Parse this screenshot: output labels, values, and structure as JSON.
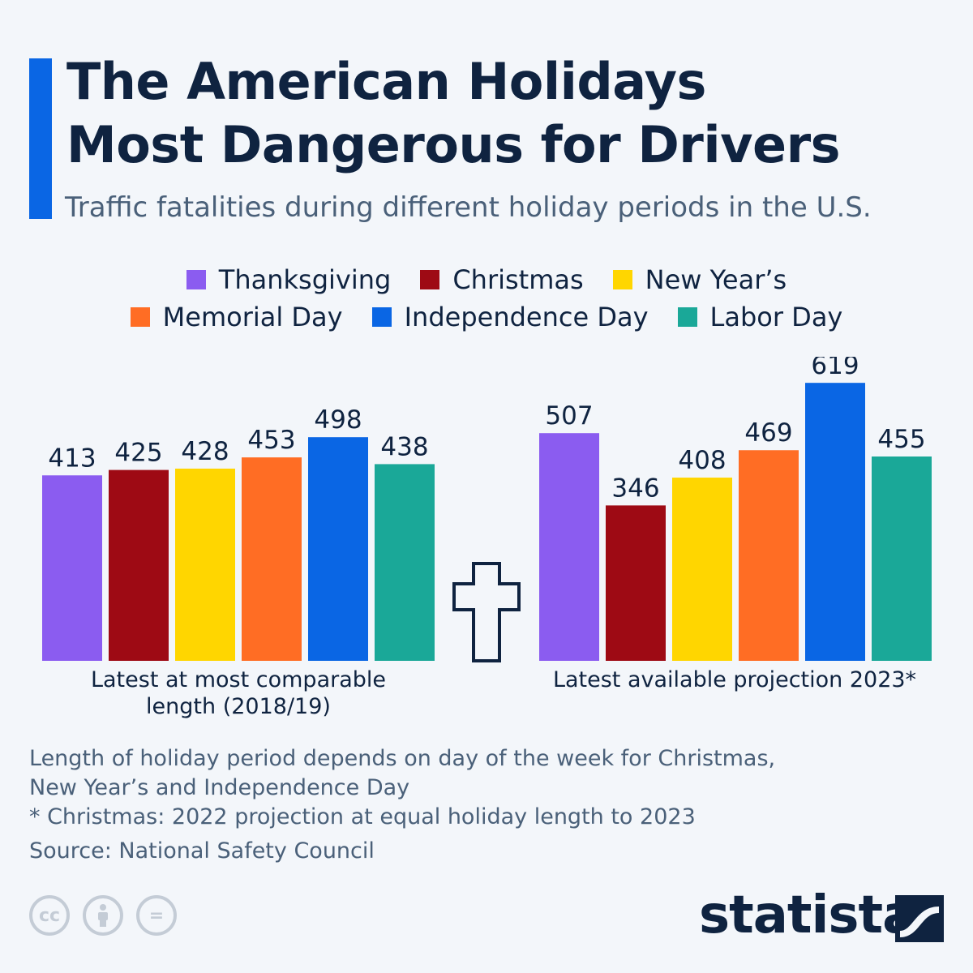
{
  "header": {
    "title_line1": "The American Holidays",
    "title_line2": "Most Dangerous for Drivers",
    "subtitle": "Traffic fatalities during different holiday periods in the U.S."
  },
  "colors": {
    "accent": "#0a66e4",
    "thanksgiving": "#8b5cf0",
    "christmas": "#9e0a14",
    "new_years": "#ffd600",
    "memorial_day": "#ff6d24",
    "independence_day": "#0a66e4",
    "labor_day": "#1aa898"
  },
  "chart_data": {
    "type": "bar",
    "title": "The American Holidays Most Dangerous for Drivers",
    "subtitle": "Traffic fatalities during different holiday periods in the U.S.",
    "categories": [
      "Latest at most comparable length (2018/19)",
      "Latest available projection 2023*"
    ],
    "category_lines": [
      [
        "Latest at most comparable",
        "length (2018/19)"
      ],
      [
        "Latest available projection 2023*"
      ]
    ],
    "series": [
      {
        "name": "Thanksgiving",
        "values": [
          413,
          507
        ]
      },
      {
        "name": "Christmas",
        "values": [
          425,
          346
        ]
      },
      {
        "name": "New Year’s",
        "values": [
          428,
          408
        ]
      },
      {
        "name": "Memorial Day",
        "values": [
          453,
          469
        ]
      },
      {
        "name": "Independence Day",
        "values": [
          498,
          619
        ]
      },
      {
        "name": "Labor Day",
        "values": [
          438,
          455
        ]
      }
    ],
    "ylim": [
      0,
      650
    ],
    "legend_position": "top"
  },
  "notes": {
    "line1": "Length of holiday period depends on day of the week for Christmas,",
    "line2": "New Year’s and Independence Day",
    "line3": "* Christmas: 2022 projection at equal holiday length to 2023",
    "source": "Source: National Safety Council"
  },
  "footer": {
    "cc_label": "cc",
    "equals_label": "=",
    "brand": "statista"
  }
}
